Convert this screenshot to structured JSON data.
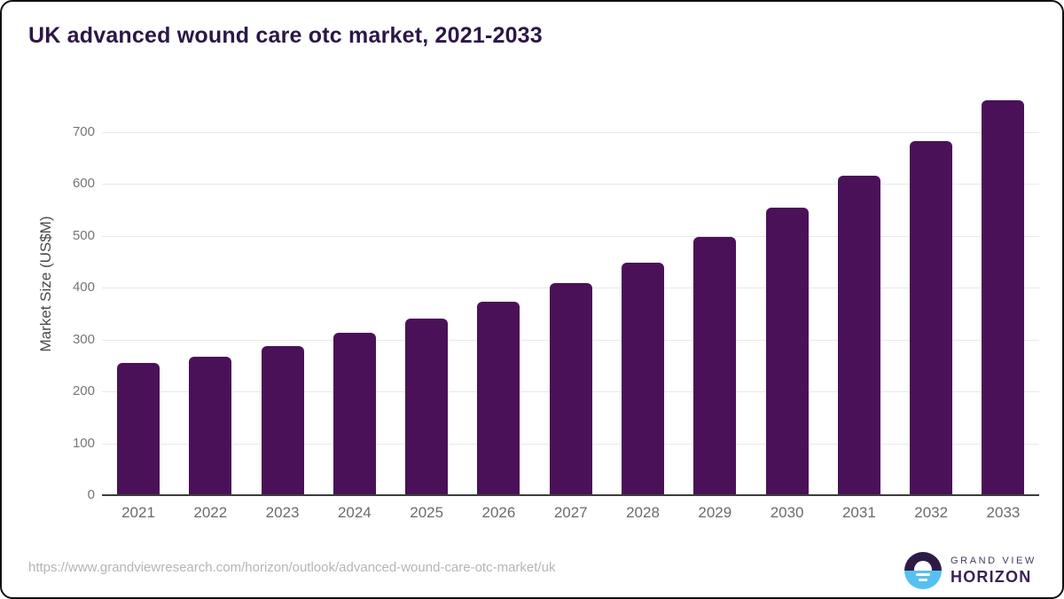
{
  "title": "UK advanced wound care otc market, 2021-2033",
  "source_url": "https://www.grandviewresearch.com/horizon/outlook/advanced-wound-care-otc-market/uk",
  "logo": {
    "line1": "GRAND VIEW",
    "line2": "HORIZON",
    "icon": "sunrise-horizon-icon",
    "navy": "#2e1a47",
    "blue": "#56c1f0"
  },
  "colors": {
    "bar": "#4a1158",
    "title_text": "#2b1747",
    "gridline": "#e9e9e9",
    "axis_line": "#3d3d3d",
    "tick_text": "#767676",
    "url_text": "#b5b5b5"
  },
  "chart_data": {
    "type": "bar",
    "title": "UK advanced wound care otc market, 2021-2033",
    "categories": [
      "2021",
      "2022",
      "2023",
      "2024",
      "2025",
      "2026",
      "2027",
      "2028",
      "2029",
      "2030",
      "2031",
      "2032",
      "2033"
    ],
    "values": [
      255,
      266,
      287,
      313,
      341,
      372,
      408,
      448,
      498,
      553,
      615,
      682,
      760
    ],
    "xlabel": "",
    "ylabel": "Market Size (US$M)",
    "ylim": [
      0,
      800
    ],
    "yticks": [
      0,
      100,
      200,
      300,
      400,
      500,
      600,
      700
    ],
    "grid": true,
    "legend": false,
    "bar_color": "#4a1158"
  }
}
